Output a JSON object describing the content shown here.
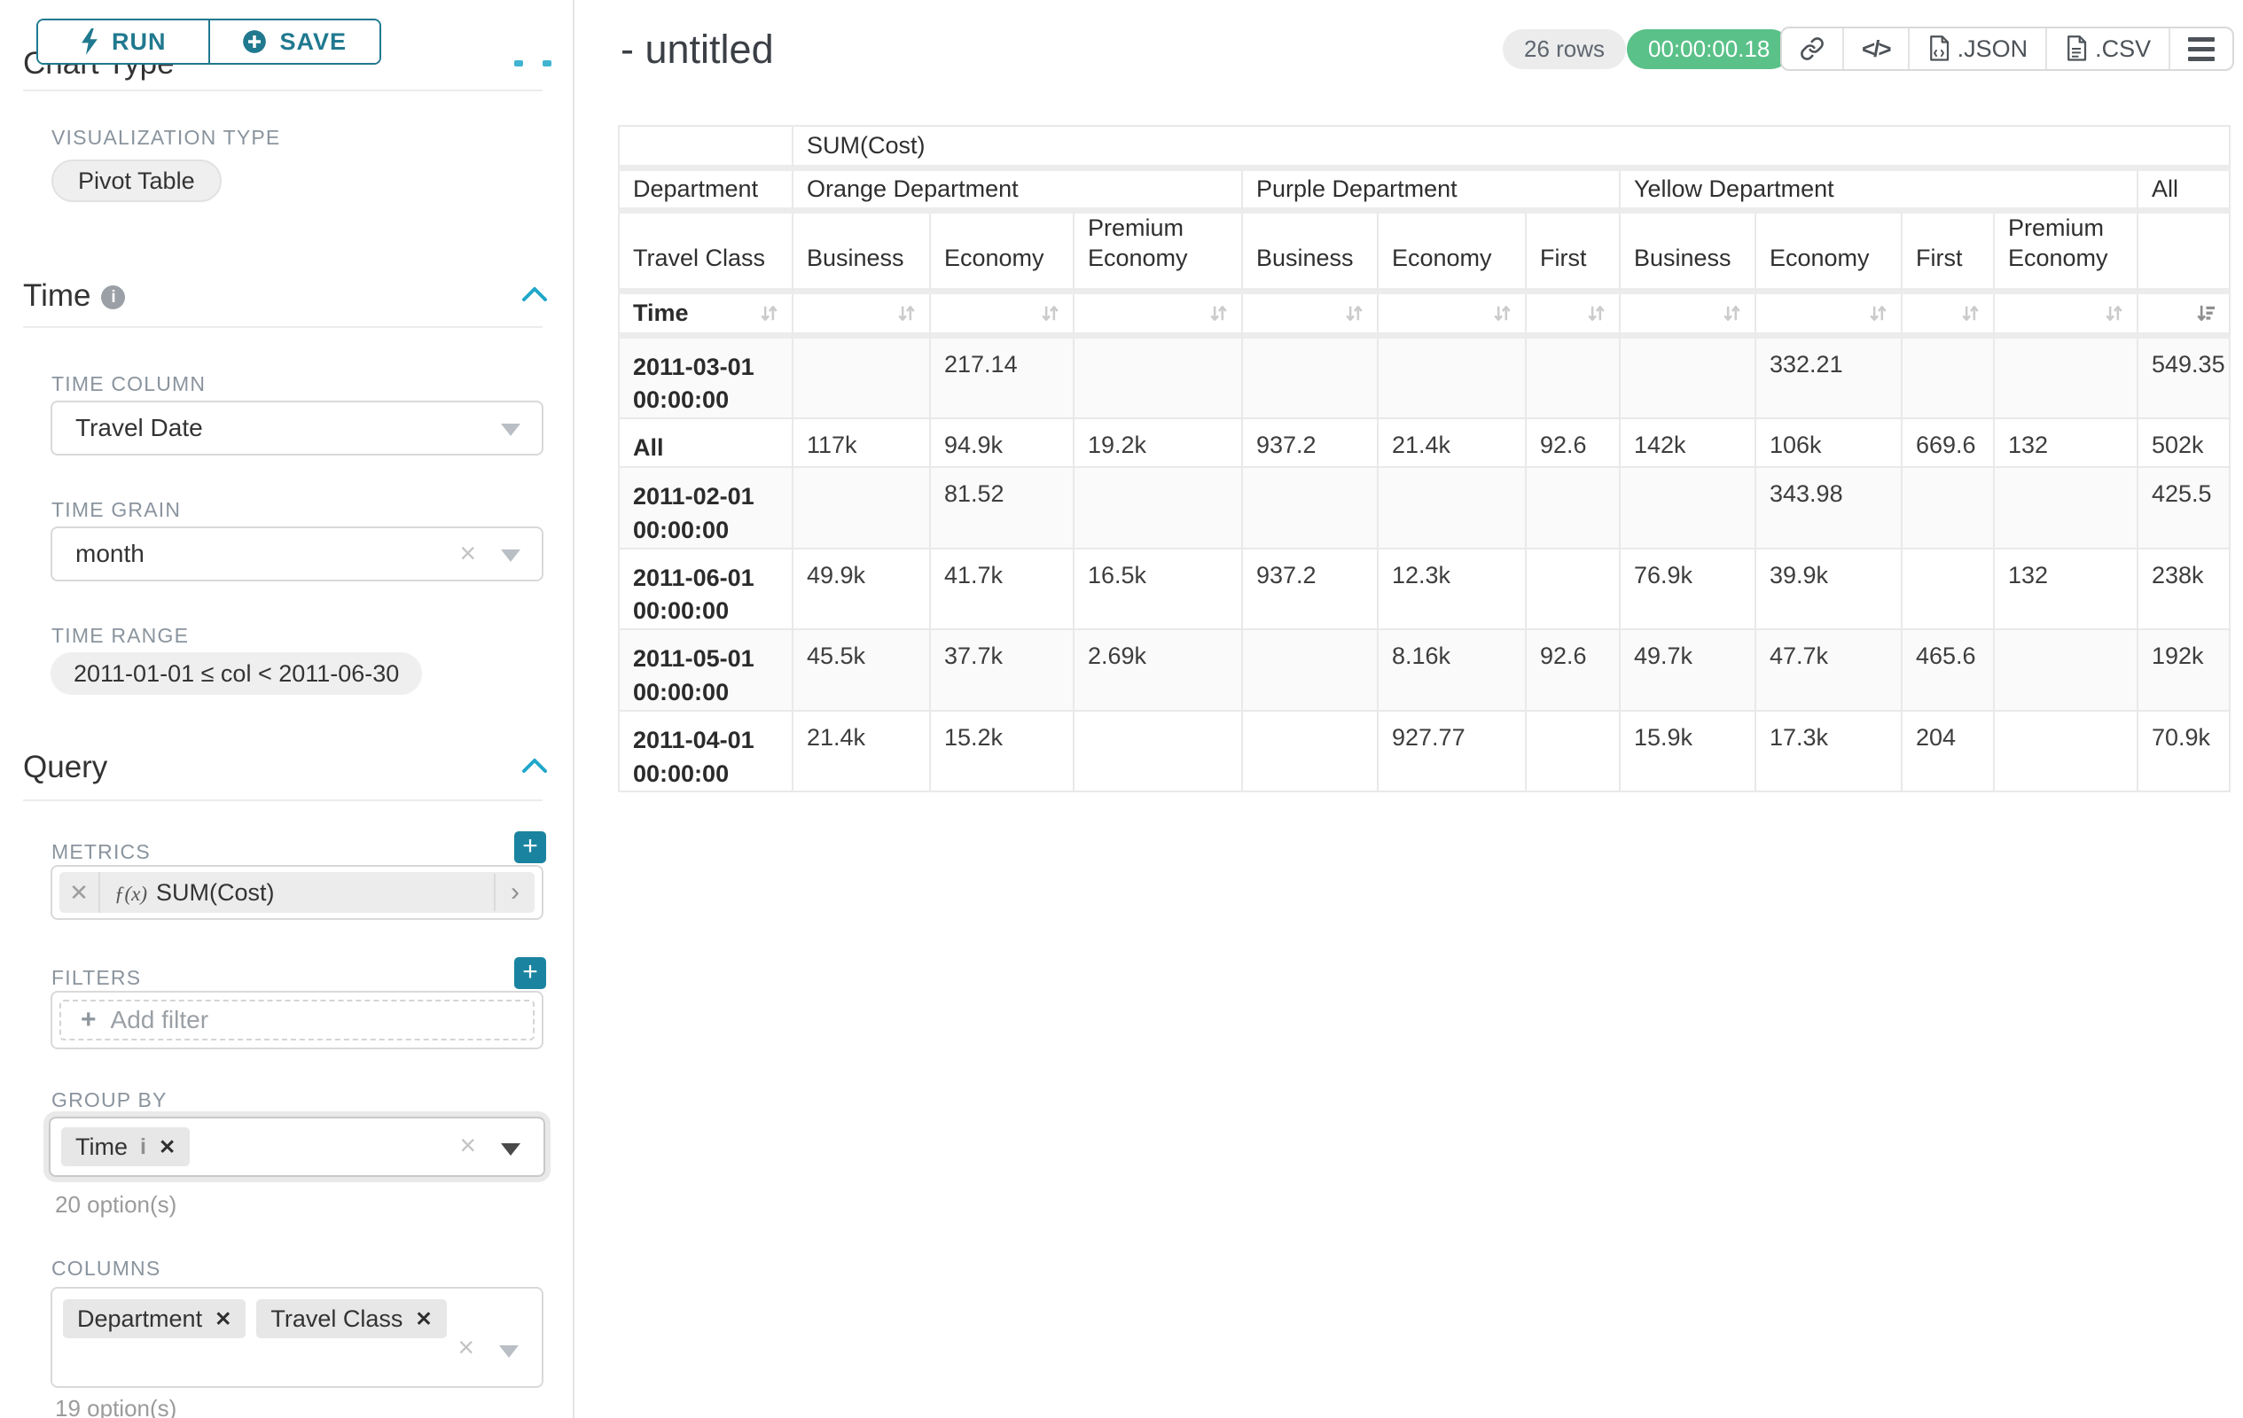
{
  "sidebar": {
    "run_label": "RUN",
    "save_label": "SAVE",
    "chart_type_heading": "Chart Type",
    "viz_type_label": "VISUALIZATION TYPE",
    "viz_type_value": "Pivot Table",
    "time_heading": "Time",
    "time_column_label": "TIME COLUMN",
    "time_column_value": "Travel Date",
    "time_grain_label": "TIME GRAIN",
    "time_grain_value": "month",
    "time_range_label": "TIME RANGE",
    "time_range_value": "2011-01-01 ≤ col < 2011-06-30",
    "query_heading": "Query",
    "metrics_label": "METRICS",
    "metric_fx": "ƒ(x)",
    "metric_value": "SUM(Cost)",
    "filters_label": "FILTERS",
    "add_filter_label": "Add filter",
    "group_by_label": "GROUP BY",
    "group_by_tags": [
      "Time"
    ],
    "group_by_options": "20 option(s)",
    "columns_label": "COLUMNS",
    "columns_tags": [
      "Department",
      "Travel Class"
    ],
    "columns_options": "19 option(s)"
  },
  "header": {
    "title": "- untitled",
    "rows_badge": "26 rows",
    "timer_badge": "00:00:00.18",
    "export_json_label": ".JSON",
    "export_csv_label": ".CSV"
  },
  "pivot": {
    "metric_header": "SUM(Cost)",
    "col_dim_label": "Department",
    "sub_dim_label": "Travel Class",
    "row_dim_label": "Time",
    "col_groups": [
      {
        "label": "Orange Department",
        "cols": [
          "Business",
          "Economy",
          "Premium Economy"
        ]
      },
      {
        "label": "Purple Department",
        "cols": [
          "Business",
          "Economy",
          "First"
        ]
      },
      {
        "label": "Yellow Department",
        "cols": [
          "Business",
          "Economy",
          "First",
          "Premium Economy"
        ]
      },
      {
        "label": "All",
        "cols": [
          ""
        ]
      }
    ],
    "rows": [
      {
        "label": "2011-03-01 00:00:00",
        "values": [
          "",
          "217.14",
          "",
          "",
          "",
          "",
          "",
          "332.21",
          "",
          "",
          "549.35"
        ]
      },
      {
        "label": "All",
        "values": [
          "117k",
          "94.9k",
          "19.2k",
          "937.2",
          "21.4k",
          "92.6",
          "142k",
          "106k",
          "669.6",
          "132",
          "502k"
        ]
      },
      {
        "label": "2011-02-01 00:00:00",
        "values": [
          "",
          "81.52",
          "",
          "",
          "",
          "",
          "",
          "343.98",
          "",
          "",
          "425.5"
        ]
      },
      {
        "label": "2011-06-01 00:00:00",
        "values": [
          "49.9k",
          "41.7k",
          "16.5k",
          "937.2",
          "12.3k",
          "",
          "76.9k",
          "39.9k",
          "",
          "132",
          "238k"
        ]
      },
      {
        "label": "2011-05-01 00:00:00",
        "values": [
          "45.5k",
          "37.7k",
          "2.69k",
          "",
          "8.16k",
          "92.6",
          "49.7k",
          "47.7k",
          "465.6",
          "",
          "192k"
        ]
      },
      {
        "label": "2011-04-01 00:00:00",
        "values": [
          "21.4k",
          "15.2k",
          "",
          "",
          "927.77",
          "",
          "15.9k",
          "17.3k",
          "204",
          "",
          "70.9k"
        ]
      }
    ]
  },
  "colors": {
    "accent_teal": "#20798f",
    "accent_blue": "#20a7c9",
    "timer_green": "#5ac189",
    "label_gray": "#8a949e"
  }
}
